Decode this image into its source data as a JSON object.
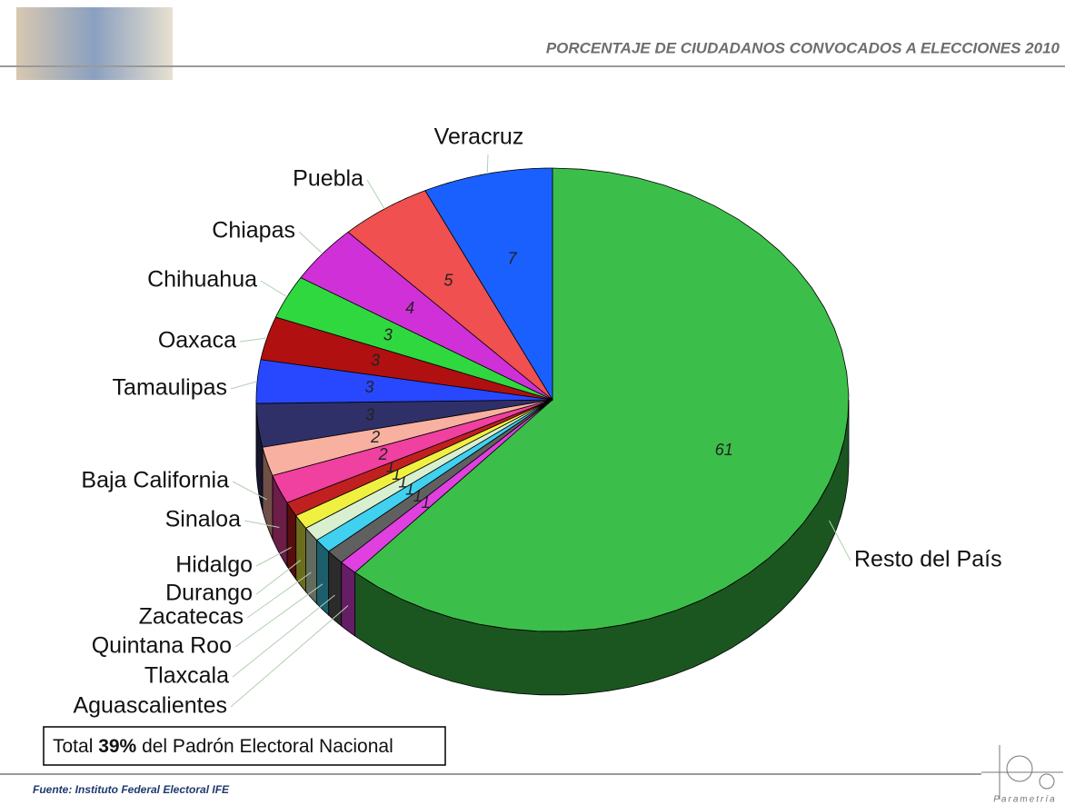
{
  "header": {
    "title": "PORCENTAJE DE CIUDADANOS CONVOCADOS A ELECCIONES 2010"
  },
  "chart_data": {
    "type": "pie",
    "categories": [
      "Resto del País",
      "Aguascalientes",
      "Tlaxcala",
      "Quintana Roo",
      "Zacatecas",
      "Durango",
      "Hidalgo",
      "Sinaloa",
      "Baja California",
      null,
      "Tamaulipas",
      "Oaxaca",
      "Chihuahua",
      "Chiapas",
      "Puebla",
      "Veracruz"
    ],
    "values": [
      61,
      1,
      1,
      1,
      1,
      1,
      1,
      2,
      2,
      3,
      3,
      3,
      3,
      4,
      5,
      7
    ],
    "colors": [
      "#3cbf4a",
      "#e040e0",
      "#606060",
      "#40d0f0",
      "#d8f0d0",
      "#f0f040",
      "#c02020",
      "#f040a0",
      "#f8b0a0",
      "#303068",
      "#2848ff",
      "#b01010",
      "#30d840",
      "#d030d8",
      "#f05050",
      "#1a60ff"
    ]
  },
  "note": {
    "prefix": "Total",
    "highlight": "39%",
    "suffix": "del Padrón Electoral Nacional"
  },
  "source": "Fuente: Instituto Federal Electoral IFE",
  "logo": "Parametría"
}
